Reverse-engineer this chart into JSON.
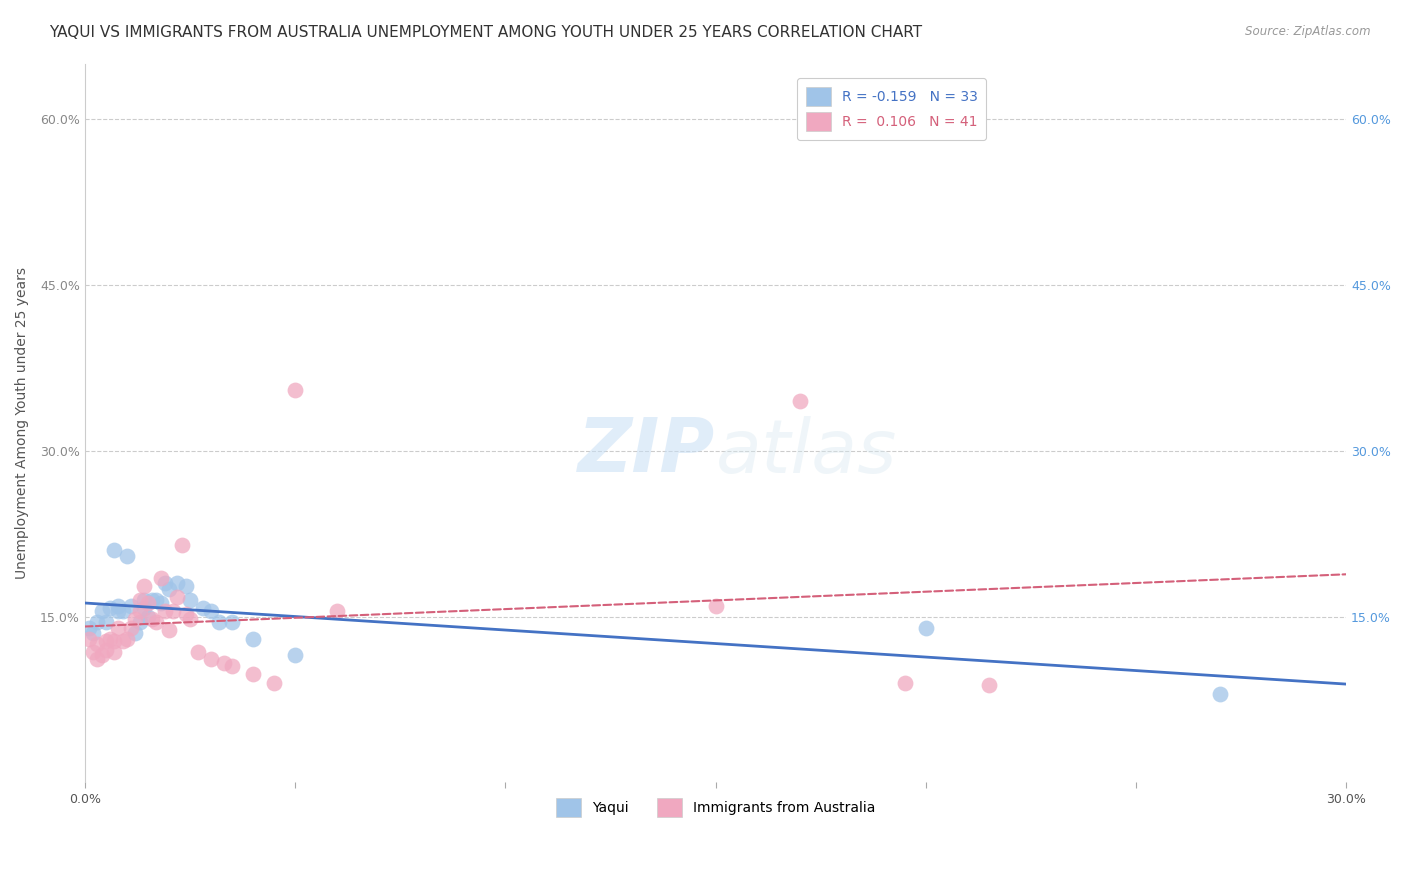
{
  "title": "YAQUI VS IMMIGRANTS FROM AUSTRALIA UNEMPLOYMENT AMONG YOUTH UNDER 25 YEARS CORRELATION CHART",
  "source": "Source: ZipAtlas.com",
  "ylabel": "Unemployment Among Youth under 25 years",
  "xlim": [
    0.0,
    0.3
  ],
  "ylim": [
    0.0,
    0.65
  ],
  "ytick_vals": [
    0.15,
    0.3,
    0.45,
    0.6
  ],
  "ytick_labels": [
    "15.0%",
    "30.0%",
    "45.0%",
    "60.0%"
  ],
  "xtick_vals": [
    0.0,
    0.05,
    0.1,
    0.15,
    0.2,
    0.25,
    0.3
  ],
  "xtick_labels_shown": {
    "0.0": "0.0%",
    "0.3": "30.0%"
  },
  "legend_r1": "R = -0.159",
  "legend_n1": "N = 33",
  "legend_r2": "R =  0.106",
  "legend_n2": "N = 41",
  "yaqui_color": "#a0c4e8",
  "australia_color": "#f0a8c0",
  "yaqui_line_color": "#4472c4",
  "australia_line_color": "#d4607a",
  "background_color": "#ffffff",
  "grid_color": "#cccccc",
  "yaqui_x": [
    0.001,
    0.002,
    0.003,
    0.004,
    0.005,
    0.006,
    0.007,
    0.008,
    0.008,
    0.009,
    0.01,
    0.011,
    0.012,
    0.013,
    0.014,
    0.014,
    0.015,
    0.016,
    0.017,
    0.018,
    0.019,
    0.02,
    0.022,
    0.024,
    0.025,
    0.028,
    0.03,
    0.032,
    0.035,
    0.04,
    0.05,
    0.2,
    0.27
  ],
  "yaqui_y": [
    0.14,
    0.135,
    0.145,
    0.155,
    0.145,
    0.158,
    0.21,
    0.155,
    0.16,
    0.155,
    0.205,
    0.16,
    0.135,
    0.145,
    0.158,
    0.165,
    0.15,
    0.165,
    0.165,
    0.162,
    0.18,
    0.175,
    0.18,
    0.178,
    0.165,
    0.158,
    0.155,
    0.145,
    0.145,
    0.13,
    0.115,
    0.14,
    0.08
  ],
  "australia_x": [
    0.001,
    0.002,
    0.003,
    0.003,
    0.004,
    0.005,
    0.005,
    0.006,
    0.007,
    0.007,
    0.008,
    0.009,
    0.01,
    0.011,
    0.012,
    0.013,
    0.013,
    0.014,
    0.015,
    0.016,
    0.017,
    0.018,
    0.019,
    0.02,
    0.021,
    0.022,
    0.023,
    0.024,
    0.025,
    0.027,
    0.03,
    0.033,
    0.035,
    0.04,
    0.045,
    0.05,
    0.06,
    0.15,
    0.17,
    0.195,
    0.215
  ],
  "australia_y": [
    0.13,
    0.118,
    0.112,
    0.125,
    0.115,
    0.12,
    0.128,
    0.13,
    0.118,
    0.128,
    0.14,
    0.128,
    0.13,
    0.14,
    0.148,
    0.155,
    0.165,
    0.178,
    0.162,
    0.148,
    0.145,
    0.185,
    0.155,
    0.138,
    0.155,
    0.168,
    0.215,
    0.152,
    0.148,
    0.118,
    0.112,
    0.108,
    0.105,
    0.098,
    0.09,
    0.355,
    0.155,
    0.16,
    0.345,
    0.09,
    0.088
  ],
  "title_fontsize": 11,
  "axis_label_fontsize": 10,
  "tick_fontsize": 9,
  "source_fontsize": 8.5
}
